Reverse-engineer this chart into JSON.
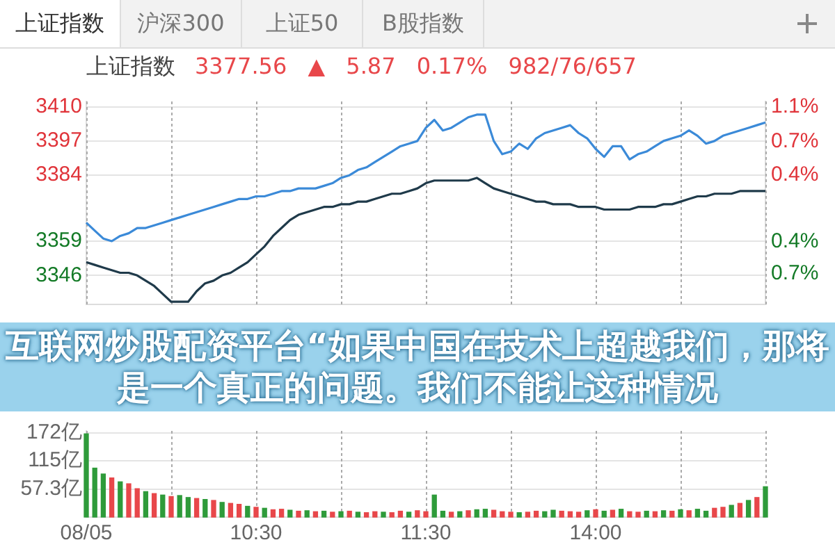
{
  "chart_data": [
    {
      "type": "line",
      "title": "上证指数",
      "subtitle": "3377.56 ▲ 5.87 0.17% 982/76/657",
      "annotations": [
        "上证指数",
        "沪深300",
        "上证50",
        "B股指数",
        "互联网炒股配资平台“如果中国在技术上超越我们，那将是一个真正的问题。我们不能让这种情况"
      ],
      "categories": [
        null,
        null,
        null,
        null,
        null,
        null,
        null,
        null,
        null,
        null,
        null,
        null,
        null,
        null,
        null,
        null,
        null,
        null,
        null,
        null,
        null,
        null,
        null,
        null,
        null,
        null,
        null,
        null,
        null,
        null,
        null,
        null,
        null,
        null,
        null,
        null,
        null,
        null,
        null,
        null,
        null,
        null,
        null,
        null,
        null,
        null,
        null,
        null,
        null,
        null,
        null,
        null,
        null,
        null,
        null,
        null,
        null,
        null,
        null,
        null,
        null,
        null,
        null,
        null,
        null,
        null,
        null,
        null,
        null,
        null,
        null,
        null,
        null,
        null,
        null,
        null,
        null,
        null,
        null,
        null,
        null
      ],
      "series": [
        {
          "color": "#3b8ad8",
          "values": [
            3366,
            3363,
            3360,
            3359,
            3361,
            3362,
            3364,
            3364,
            3365,
            3366,
            3367,
            3368,
            3369,
            3370,
            3371,
            3372,
            3373,
            3374,
            3375,
            3375,
            3376,
            3376,
            3377,
            3378,
            3378,
            3379,
            3379,
            3379,
            3380,
            3381,
            3383,
            3384,
            3386,
            3387,
            3389,
            3391,
            3393,
            3395,
            3396,
            3397,
            3402,
            3405,
            3401,
            3402,
            3404,
            3406,
            3407,
            3407,
            3397,
            3392,
            3393,
            3396,
            3394,
            3398,
            3400,
            3401,
            3402,
            3403,
            3400,
            3398,
            3394,
            3391,
            3395,
            3395,
            3390,
            3392,
            3393,
            3395,
            3397,
            3398,
            3399,
            3401,
            3399,
            3396,
            3397,
            3399,
            3400,
            3401,
            3402,
            3403,
            3404
          ]
        },
        {
          "color": "#1f3a4a",
          "values": [
            3351,
            3350,
            3349,
            3348,
            3347,
            3347,
            3346,
            3344,
            3342,
            3339,
            3336,
            3336,
            3336,
            3340,
            3343,
            3344,
            3346,
            3347,
            3349,
            3351,
            3354,
            3357,
            3361,
            3364,
            3367,
            3369,
            3370,
            3371,
            3372,
            3372,
            3373,
            3373,
            3374,
            3374,
            3375,
            3376,
            3377,
            3377,
            3378,
            3379,
            3381,
            3382,
            3382,
            3382,
            3382,
            3382,
            3383,
            3381,
            3379,
            3378,
            3377,
            3376,
            3375,
            3374,
            3374,
            3373,
            3373,
            3373,
            3372,
            3372,
            3372,
            3371,
            3371,
            3371,
            3371,
            3372,
            3372,
            3372,
            3373,
            3373,
            3374,
            3375,
            3376,
            3376,
            3377,
            3377,
            3377,
            3378,
            3378,
            3378,
            3378
          ]
        }
      ],
      "ylim": [
        3335,
        3412
      ],
      "yticks": [
        3346,
        3359,
        3384,
        3397,
        3410
      ],
      "y2lim": [
        -1.09,
        1.2
      ],
      "y2ticks": [
        {
          "value": 1.14,
          "label": "1.1%"
        },
        {
          "value": 0.75,
          "label": "0.7%"
        },
        {
          "value": 0.37,
          "label": "0.4%"
        },
        {
          "value": -0.38,
          "label": "0.4%"
        },
        {
          "value": -0.74,
          "label": "0.7%"
        }
      ],
      "grid": true,
      "marker": "none",
      "line_style": "solid",
      "tick_labels": "y"
    },
    {
      "type": "bar",
      "categories": [
        "08/05",
        null,
        null,
        null,
        null,
        null,
        null,
        null,
        null,
        null,
        null,
        null,
        null,
        null,
        null,
        null,
        null,
        null,
        null,
        null,
        "10:30",
        null,
        null,
        null,
        null,
        null,
        null,
        null,
        null,
        null,
        null,
        null,
        null,
        null,
        null,
        null,
        null,
        null,
        null,
        null,
        "11:30",
        null,
        null,
        null,
        null,
        null,
        null,
        null,
        null,
        null,
        null,
        null,
        null,
        null,
        null,
        null,
        null,
        null,
        null,
        null,
        "14:00",
        null,
        null,
        null,
        null,
        null,
        null,
        null,
        null,
        null,
        null,
        null,
        null,
        null,
        null,
        null,
        null,
        null,
        null,
        null,
        null
      ],
      "values": [
        170,
        100,
        88,
        80,
        72,
        68,
        58,
        52,
        48,
        45,
        42,
        44,
        40,
        38,
        36,
        34,
        30,
        28,
        26,
        22,
        20,
        18,
        15,
        16,
        14,
        12,
        13,
        11,
        12,
        10,
        11,
        12,
        10,
        9,
        11,
        10,
        9,
        12,
        10,
        13,
        11,
        45,
        12,
        10,
        11,
        13,
        15,
        16,
        14,
        11,
        10,
        9,
        10,
        12,
        11,
        14,
        12,
        11,
        10,
        13,
        15,
        12,
        14,
        16,
        11,
        10,
        12,
        11,
        13,
        12,
        15,
        13,
        16,
        12,
        18,
        20,
        24,
        28,
        34,
        40,
        62
      ],
      "colors": [
        "#2e9b3a",
        "#2e9b3a",
        "#2e9b3a",
        "#e8474a",
        "#2e9b3a",
        "#e8474a",
        "#e8474a",
        "#2e9b3a",
        "#e8474a",
        "#2e9b3a",
        "#e8474a",
        "#2e9b3a",
        "#2e9b3a",
        "#e8474a",
        "#2e9b3a",
        "#e8474a",
        "#2e9b3a",
        "#e8474a",
        "#e8474a",
        "#2e9b3a",
        "#e8474a",
        "#2e9b3a",
        "#e8474a",
        "#e8474a",
        "#2e9b3a",
        "#e8474a",
        "#2e9b3a",
        "#e8474a",
        "#2e9b3a",
        "#e8474a",
        "#2e9b3a",
        "#e8474a",
        "#2e9b3a",
        "#e8474a",
        "#e8474a",
        "#2e9b3a",
        "#e8474a",
        "#e8474a",
        "#2e9b3a",
        "#e8474a",
        "#e8474a",
        "#2e9b3a",
        "#2e9b3a",
        "#e8474a",
        "#2e9b3a",
        "#e8474a",
        "#2e9b3a",
        "#2e9b3a",
        "#e8474a",
        "#e8474a",
        "#e8474a",
        "#2e9b3a",
        "#e8474a",
        "#e8474a",
        "#2e9b3a",
        "#2e9b3a",
        "#e8474a",
        "#e8474a",
        "#e8474a",
        "#2e9b3a",
        "#e8474a",
        "#2e9b3a",
        "#e8474a",
        "#2e9b3a",
        "#e8474a",
        "#e8474a",
        "#2e9b3a",
        "#e8474a",
        "#2e9b3a",
        "#e8474a",
        "#2e9b3a",
        "#e8474a",
        "#2e9b3a",
        "#2e9b3a",
        "#e8474a",
        "#e8474a",
        "#2e9b3a",
        "#e8474a",
        "#2e9b3a",
        "#e8474a",
        "#2e9b3a"
      ],
      "ylim": [
        0,
        176
      ],
      "yticks": [
        {
          "value": 57.3,
          "label": "57.3亿"
        },
        {
          "value": 115,
          "label": "115亿"
        },
        {
          "value": 172,
          "label": "172亿"
        }
      ],
      "grid": true
    }
  ]
}
